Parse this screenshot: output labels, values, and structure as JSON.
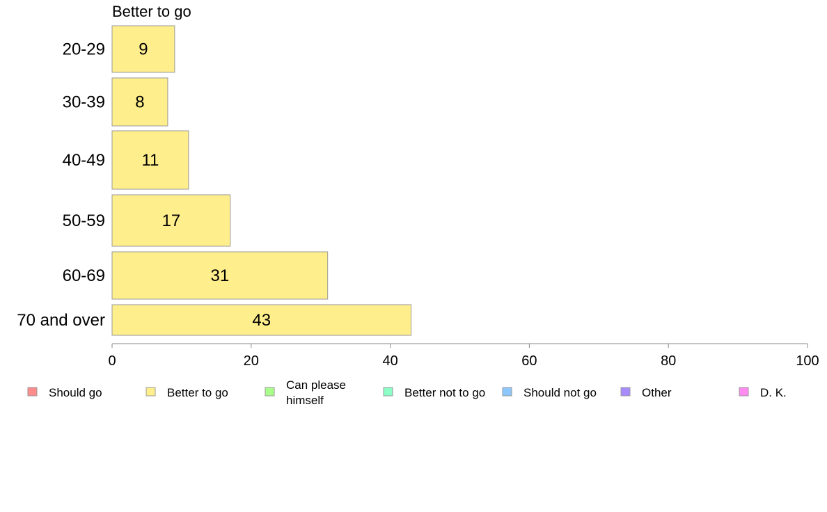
{
  "chart_data": {
    "type": "bar",
    "orientation": "horizontal",
    "title": "Better to go",
    "categories": [
      "20-29",
      "30-39",
      "40-49",
      "50-59",
      "60-69",
      "70 and over"
    ],
    "series": [
      {
        "name": "Better to go",
        "values": [
          9,
          8,
          11,
          17,
          31,
          43
        ]
      }
    ],
    "xlim": [
      0,
      100
    ],
    "xticks": [
      "0",
      "20",
      "40",
      "60",
      "80",
      "100"
    ],
    "xtick_values": [
      0,
      20,
      40,
      60,
      80,
      100
    ],
    "grid": false,
    "bar_color": "#ffee8c",
    "legend_position": "bottom",
    "legend": [
      {
        "label": "Should go",
        "color": "#ff8c8c"
      },
      {
        "label": "Better to go",
        "color": "#ffee8c"
      },
      {
        "label": "Can please\nhimself",
        "color": "#aaff8c"
      },
      {
        "label": "Better not to go",
        "color": "#8cffc8"
      },
      {
        "label": "Should not go",
        "color": "#8cc8ff"
      },
      {
        "label": "Other",
        "color": "#a88cff"
      },
      {
        "label": "D. K.",
        "color": "#ff8cee"
      }
    ]
  }
}
